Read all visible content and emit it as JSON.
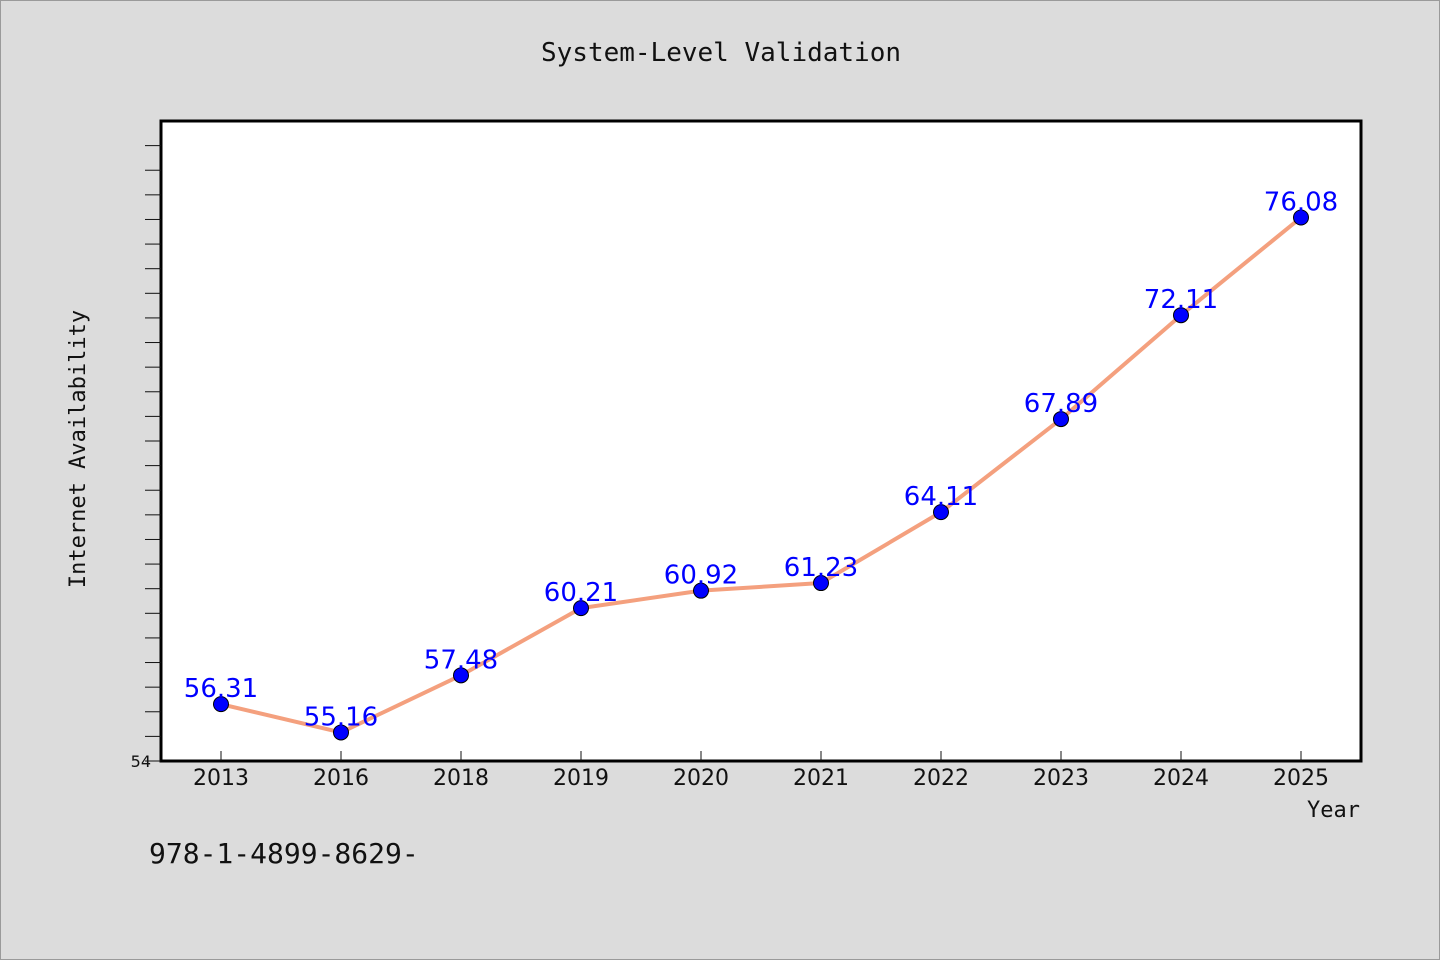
{
  "chart_data": {
    "type": "line",
    "title": "System-Level Validation",
    "xlabel": "Year",
    "ylabel": "Internet Availability",
    "categories": [
      "2013",
      "2016",
      "2018",
      "2019",
      "2020",
      "2021",
      "2022",
      "2023",
      "2024",
      "2025"
    ],
    "series": [
      {
        "values": [
          56.31,
          55.16,
          57.48,
          60.21,
          60.92,
          61.23,
          64.11,
          67.89,
          72.11,
          76.08
        ],
        "labels": [
          "56.31",
          "55.16",
          "57.48",
          "60.21",
          "60.92",
          "61.23",
          "64.11",
          "67.89",
          "72.11",
          "76.08"
        ],
        "line_color": "#f4a07e",
        "marker_color": "#0000ff"
      }
    ],
    "ylim": [
      54,
      80
    ],
    "y_tick_labels": [
      "54"
    ],
    "grid": false,
    "legend": "none"
  },
  "footer": {
    "text": "978-1-4899-8629-"
  },
  "colors": {
    "background": "#dcdcdc",
    "plot_background": "#ffffff",
    "line": "#f4a07e",
    "marker": "#0000ff",
    "data_label": "#0000ff"
  }
}
